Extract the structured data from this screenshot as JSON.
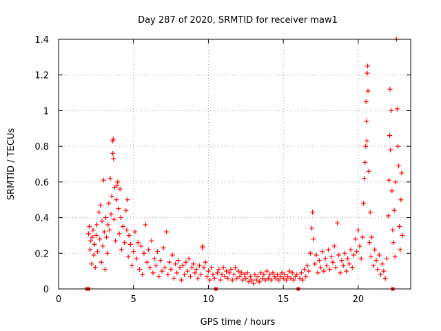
{
  "chart_data": {
    "type": "scatter",
    "title": "Day 287 of 2020, SRMTID for receiver maw1",
    "xlabel": "GPS time / hours",
    "ylabel": "SRMTID / TECUs",
    "xlim": [
      0,
      23.5
    ],
    "ylim": [
      0,
      1.4
    ],
    "xticks": [
      0,
      5,
      10,
      15,
      20
    ],
    "xtick_labels": [
      "0",
      "5",
      "10",
      "15",
      "20"
    ],
    "yticks": [
      0,
      0.2,
      0.4,
      0.6,
      0.8,
      1,
      1.2,
      1.4
    ],
    "ytick_labels": [
      "0",
      "0.2",
      "0.4",
      "0.6",
      "0.8",
      "1",
      "1.2",
      "1.4"
    ],
    "grid": true,
    "marker": "plus",
    "series": [
      {
        "name": "maw1",
        "color": "#ff0000",
        "points": [
          [
            1.9,
            0.0
          ],
          [
            2.0,
            0.31
          ],
          [
            2.05,
            0.35
          ],
          [
            2.1,
            0.22
          ],
          [
            2.15,
            0.27
          ],
          [
            2.2,
            0.14
          ],
          [
            2.25,
            0.29
          ],
          [
            2.3,
            0.33
          ],
          [
            2.35,
            0.19
          ],
          [
            2.4,
            0.25
          ],
          [
            2.45,
            0.12
          ],
          [
            2.5,
            0.3
          ],
          [
            2.55,
            0.36
          ],
          [
            2.6,
            0.21
          ],
          [
            2.7,
            0.43
          ],
          [
            2.75,
            0.28
          ],
          [
            2.8,
            0.47
          ],
          [
            2.85,
            0.15
          ],
          [
            2.9,
            0.38
          ],
          [
            2.95,
            0.24
          ],
          [
            3.0,
            0.61
          ],
          [
            3.05,
            0.32
          ],
          [
            3.1,
            0.11
          ],
          [
            3.15,
            0.4
          ],
          [
            3.2,
            0.29
          ],
          [
            3.25,
            0.2
          ],
          [
            3.3,
            0.36
          ],
          [
            3.35,
            0.48
          ],
          [
            3.4,
            0.33
          ],
          [
            3.45,
            0.62
          ],
          [
            3.5,
            0.42
          ],
          [
            3.55,
            0.52
          ],
          [
            3.6,
            0.83
          ],
          [
            3.62,
            0.76
          ],
          [
            3.65,
            0.84
          ],
          [
            3.67,
            0.73
          ],
          [
            3.7,
            0.39
          ],
          [
            3.75,
            0.57
          ],
          [
            3.8,
            0.27
          ],
          [
            3.85,
            0.5
          ],
          [
            3.9,
            0.58
          ],
          [
            3.95,
            0.6
          ],
          [
            4.0,
            0.45
          ],
          [
            4.05,
            0.31
          ],
          [
            4.1,
            0.56
          ],
          [
            4.15,
            0.4
          ],
          [
            4.2,
            0.22
          ],
          [
            4.3,
            0.35
          ],
          [
            4.4,
            0.26
          ],
          [
            4.5,
            0.44
          ],
          [
            4.55,
            0.33
          ],
          [
            4.6,
            0.5
          ],
          [
            4.65,
            0.18
          ],
          [
            4.7,
            0.3
          ],
          [
            4.8,
            0.25
          ],
          [
            4.9,
            0.13
          ],
          [
            5.0,
            0.21
          ],
          [
            5.1,
            0.32
          ],
          [
            5.2,
            0.17
          ],
          [
            5.3,
            0.26
          ],
          [
            5.4,
            0.11
          ],
          [
            5.5,
            0.24
          ],
          [
            5.6,
            0.08
          ],
          [
            5.7,
            0.2
          ],
          [
            5.8,
            0.36
          ],
          [
            5.9,
            0.15
          ],
          [
            6.0,
            0.22
          ],
          [
            6.1,
            0.12
          ],
          [
            6.2,
            0.27
          ],
          [
            6.3,
            0.09
          ],
          [
            6.4,
            0.17
          ],
          [
            6.5,
            0.13
          ],
          [
            6.6,
            0.21
          ],
          [
            6.7,
            0.07
          ],
          [
            6.8,
            0.16
          ],
          [
            6.9,
            0.1
          ],
          [
            7.0,
            0.23
          ],
          [
            7.1,
            0.12
          ],
          [
            7.2,
            0.32
          ],
          [
            7.3,
            0.08
          ],
          [
            7.4,
            0.15
          ],
          [
            7.5,
            0.11
          ],
          [
            7.6,
            0.19
          ],
          [
            7.7,
            0.06
          ],
          [
            7.8,
            0.14
          ],
          [
            7.9,
            0.09
          ],
          [
            8.0,
            0.16
          ],
          [
            8.1,
            0.12
          ],
          [
            8.2,
            0.05
          ],
          [
            8.3,
            0.13
          ],
          [
            8.4,
            0.08
          ],
          [
            8.5,
            0.15
          ],
          [
            8.6,
            0.1
          ],
          [
            8.7,
            0.17
          ],
          [
            8.8,
            0.07
          ],
          [
            8.9,
            0.12
          ],
          [
            9.0,
            0.14
          ],
          [
            9.1,
            0.09
          ],
          [
            9.2,
            0.11
          ],
          [
            9.3,
            0.06
          ],
          [
            9.4,
            0.13
          ],
          [
            9.5,
            0.08
          ],
          [
            9.6,
            0.23
          ],
          [
            9.62,
            0.24
          ],
          [
            9.7,
            0.12
          ],
          [
            9.8,
            0.15
          ],
          [
            9.9,
            0.07
          ],
          [
            10.0,
            0.1
          ],
          [
            10.1,
            0.05
          ],
          [
            10.2,
            0.12
          ],
          [
            10.3,
            0.08
          ],
          [
            10.4,
            0.06
          ],
          [
            10.5,
            0.0
          ],
          [
            10.6,
            0.09
          ],
          [
            10.7,
            0.11
          ],
          [
            10.8,
            0.05
          ],
          [
            10.9,
            0.08
          ],
          [
            11.0,
            0.12
          ],
          [
            11.1,
            0.07
          ],
          [
            11.2,
            0.1
          ],
          [
            11.3,
            0.06
          ],
          [
            11.4,
            0.09
          ],
          [
            11.5,
            0.11
          ],
          [
            11.6,
            0.05
          ],
          [
            11.7,
            0.08
          ],
          [
            11.8,
            0.12
          ],
          [
            11.9,
            0.06
          ],
          [
            12.0,
            0.1
          ],
          [
            12.1,
            0.07
          ],
          [
            12.2,
            0.09
          ],
          [
            12.3,
            0.05
          ],
          [
            12.4,
            0.08
          ],
          [
            12.5,
            0.06
          ],
          [
            12.6,
            0.09
          ],
          [
            12.7,
            0.04
          ],
          [
            12.8,
            0.07
          ],
          [
            12.9,
            0.05
          ],
          [
            13.0,
            0.03
          ],
          [
            13.1,
            0.08
          ],
          [
            13.2,
            0.05
          ],
          [
            13.3,
            0.07
          ],
          [
            13.4,
            0.04
          ],
          [
            13.5,
            0.09
          ],
          [
            13.6,
            0.06
          ],
          [
            13.7,
            0.08
          ],
          [
            13.8,
            0.05
          ],
          [
            13.9,
            0.1
          ],
          [
            14.0,
            0.06
          ],
          [
            14.1,
            0.08
          ],
          [
            14.2,
            0.05
          ],
          [
            14.3,
            0.09
          ],
          [
            14.4,
            0.07
          ],
          [
            14.5,
            0.06
          ],
          [
            14.6,
            0.08
          ],
          [
            14.7,
            0.05
          ],
          [
            14.8,
            0.07
          ],
          [
            14.9,
            0.09
          ],
          [
            15.0,
            0.06
          ],
          [
            15.1,
            0.08
          ],
          [
            15.2,
            0.05
          ],
          [
            15.3,
            0.07
          ],
          [
            15.4,
            0.1
          ],
          [
            15.5,
            0.06
          ],
          [
            15.6,
            0.09
          ],
          [
            15.7,
            0.05
          ],
          [
            15.8,
            0.07
          ],
          [
            15.9,
            0.08
          ],
          [
            16.0,
            0.0
          ],
          [
            16.1,
            0.06
          ],
          [
            16.2,
            0.09
          ],
          [
            16.3,
            0.05
          ],
          [
            16.4,
            0.11
          ],
          [
            16.5,
            0.07
          ],
          [
            16.6,
            0.13
          ],
          [
            16.7,
            0.1
          ],
          [
            16.8,
            0.2
          ],
          [
            16.9,
            0.34
          ],
          [
            16.95,
            0.43
          ],
          [
            17.0,
            0.28
          ],
          [
            17.1,
            0.14
          ],
          [
            17.2,
            0.19
          ],
          [
            17.3,
            0.09
          ],
          [
            17.4,
            0.16
          ],
          [
            17.5,
            0.12
          ],
          [
            17.6,
            0.21
          ],
          [
            17.7,
            0.1
          ],
          [
            17.8,
            0.17
          ],
          [
            17.9,
            0.13
          ],
          [
            18.0,
            0.22
          ],
          [
            18.1,
            0.11
          ],
          [
            18.2,
            0.18
          ],
          [
            18.3,
            0.15
          ],
          [
            18.4,
            0.24
          ],
          [
            18.5,
            0.12
          ],
          [
            18.6,
            0.37
          ],
          [
            18.7,
            0.19
          ],
          [
            18.8,
            0.09
          ],
          [
            18.9,
            0.16
          ],
          [
            19.0,
            0.13
          ],
          [
            19.1,
            0.2
          ],
          [
            19.2,
            0.1
          ],
          [
            19.3,
            0.17
          ],
          [
            19.4,
            0.14
          ],
          [
            19.5,
            0.22
          ],
          [
            19.6,
            0.12
          ],
          [
            19.7,
            0.19
          ],
          [
            19.8,
            0.28
          ],
          [
            19.9,
            0.21
          ],
          [
            20.0,
            0.33
          ],
          [
            20.1,
            0.24
          ],
          [
            20.2,
            0.17
          ],
          [
            20.3,
            0.29
          ],
          [
            20.35,
            0.48
          ],
          [
            20.4,
            0.62
          ],
          [
            20.45,
            0.71
          ],
          [
            20.5,
            0.8
          ],
          [
            20.52,
            1.05
          ],
          [
            20.55,
            0.94
          ],
          [
            20.58,
            0.83
          ],
          [
            20.6,
            1.21
          ],
          [
            20.63,
            1.25
          ],
          [
            20.65,
            1.11
          ],
          [
            20.7,
            0.66
          ],
          [
            20.75,
            0.26
          ],
          [
            20.8,
            0.43
          ],
          [
            20.85,
            0.18
          ],
          [
            20.9,
            0.29
          ],
          [
            21.0,
            0.13
          ],
          [
            21.1,
            0.22
          ],
          [
            21.2,
            0.16
          ],
          [
            21.3,
            0.11
          ],
          [
            21.4,
            0.19
          ],
          [
            21.5,
            0.08
          ],
          [
            21.6,
            0.14
          ],
          [
            21.7,
            0.1
          ],
          [
            21.8,
            0.06
          ],
          [
            21.9,
            0.17
          ],
          [
            22.0,
            0.41
          ],
          [
            22.05,
            0.61
          ],
          [
            22.1,
            0.86
          ],
          [
            22.12,
            1.12
          ],
          [
            22.15,
            0.78
          ],
          [
            22.2,
            1.0
          ],
          [
            22.25,
            0.55
          ],
          [
            22.3,
            0.33
          ],
          [
            22.35,
            0.26
          ],
          [
            22.4,
            0.44
          ],
          [
            22.45,
            0.18
          ],
          [
            22.5,
            0.6
          ],
          [
            22.55,
            1.4
          ],
          [
            22.6,
            1.01
          ],
          [
            22.65,
            0.8
          ],
          [
            22.7,
            0.69
          ],
          [
            22.75,
            0.35
          ],
          [
            22.8,
            0.22
          ],
          [
            22.85,
            0.5
          ],
          [
            22.9,
            0.65
          ],
          [
            22.95,
            0.3
          ],
          [
            2.0,
            0.0
          ],
          [
            22.3,
            0.0
          ]
        ]
      }
    ]
  }
}
